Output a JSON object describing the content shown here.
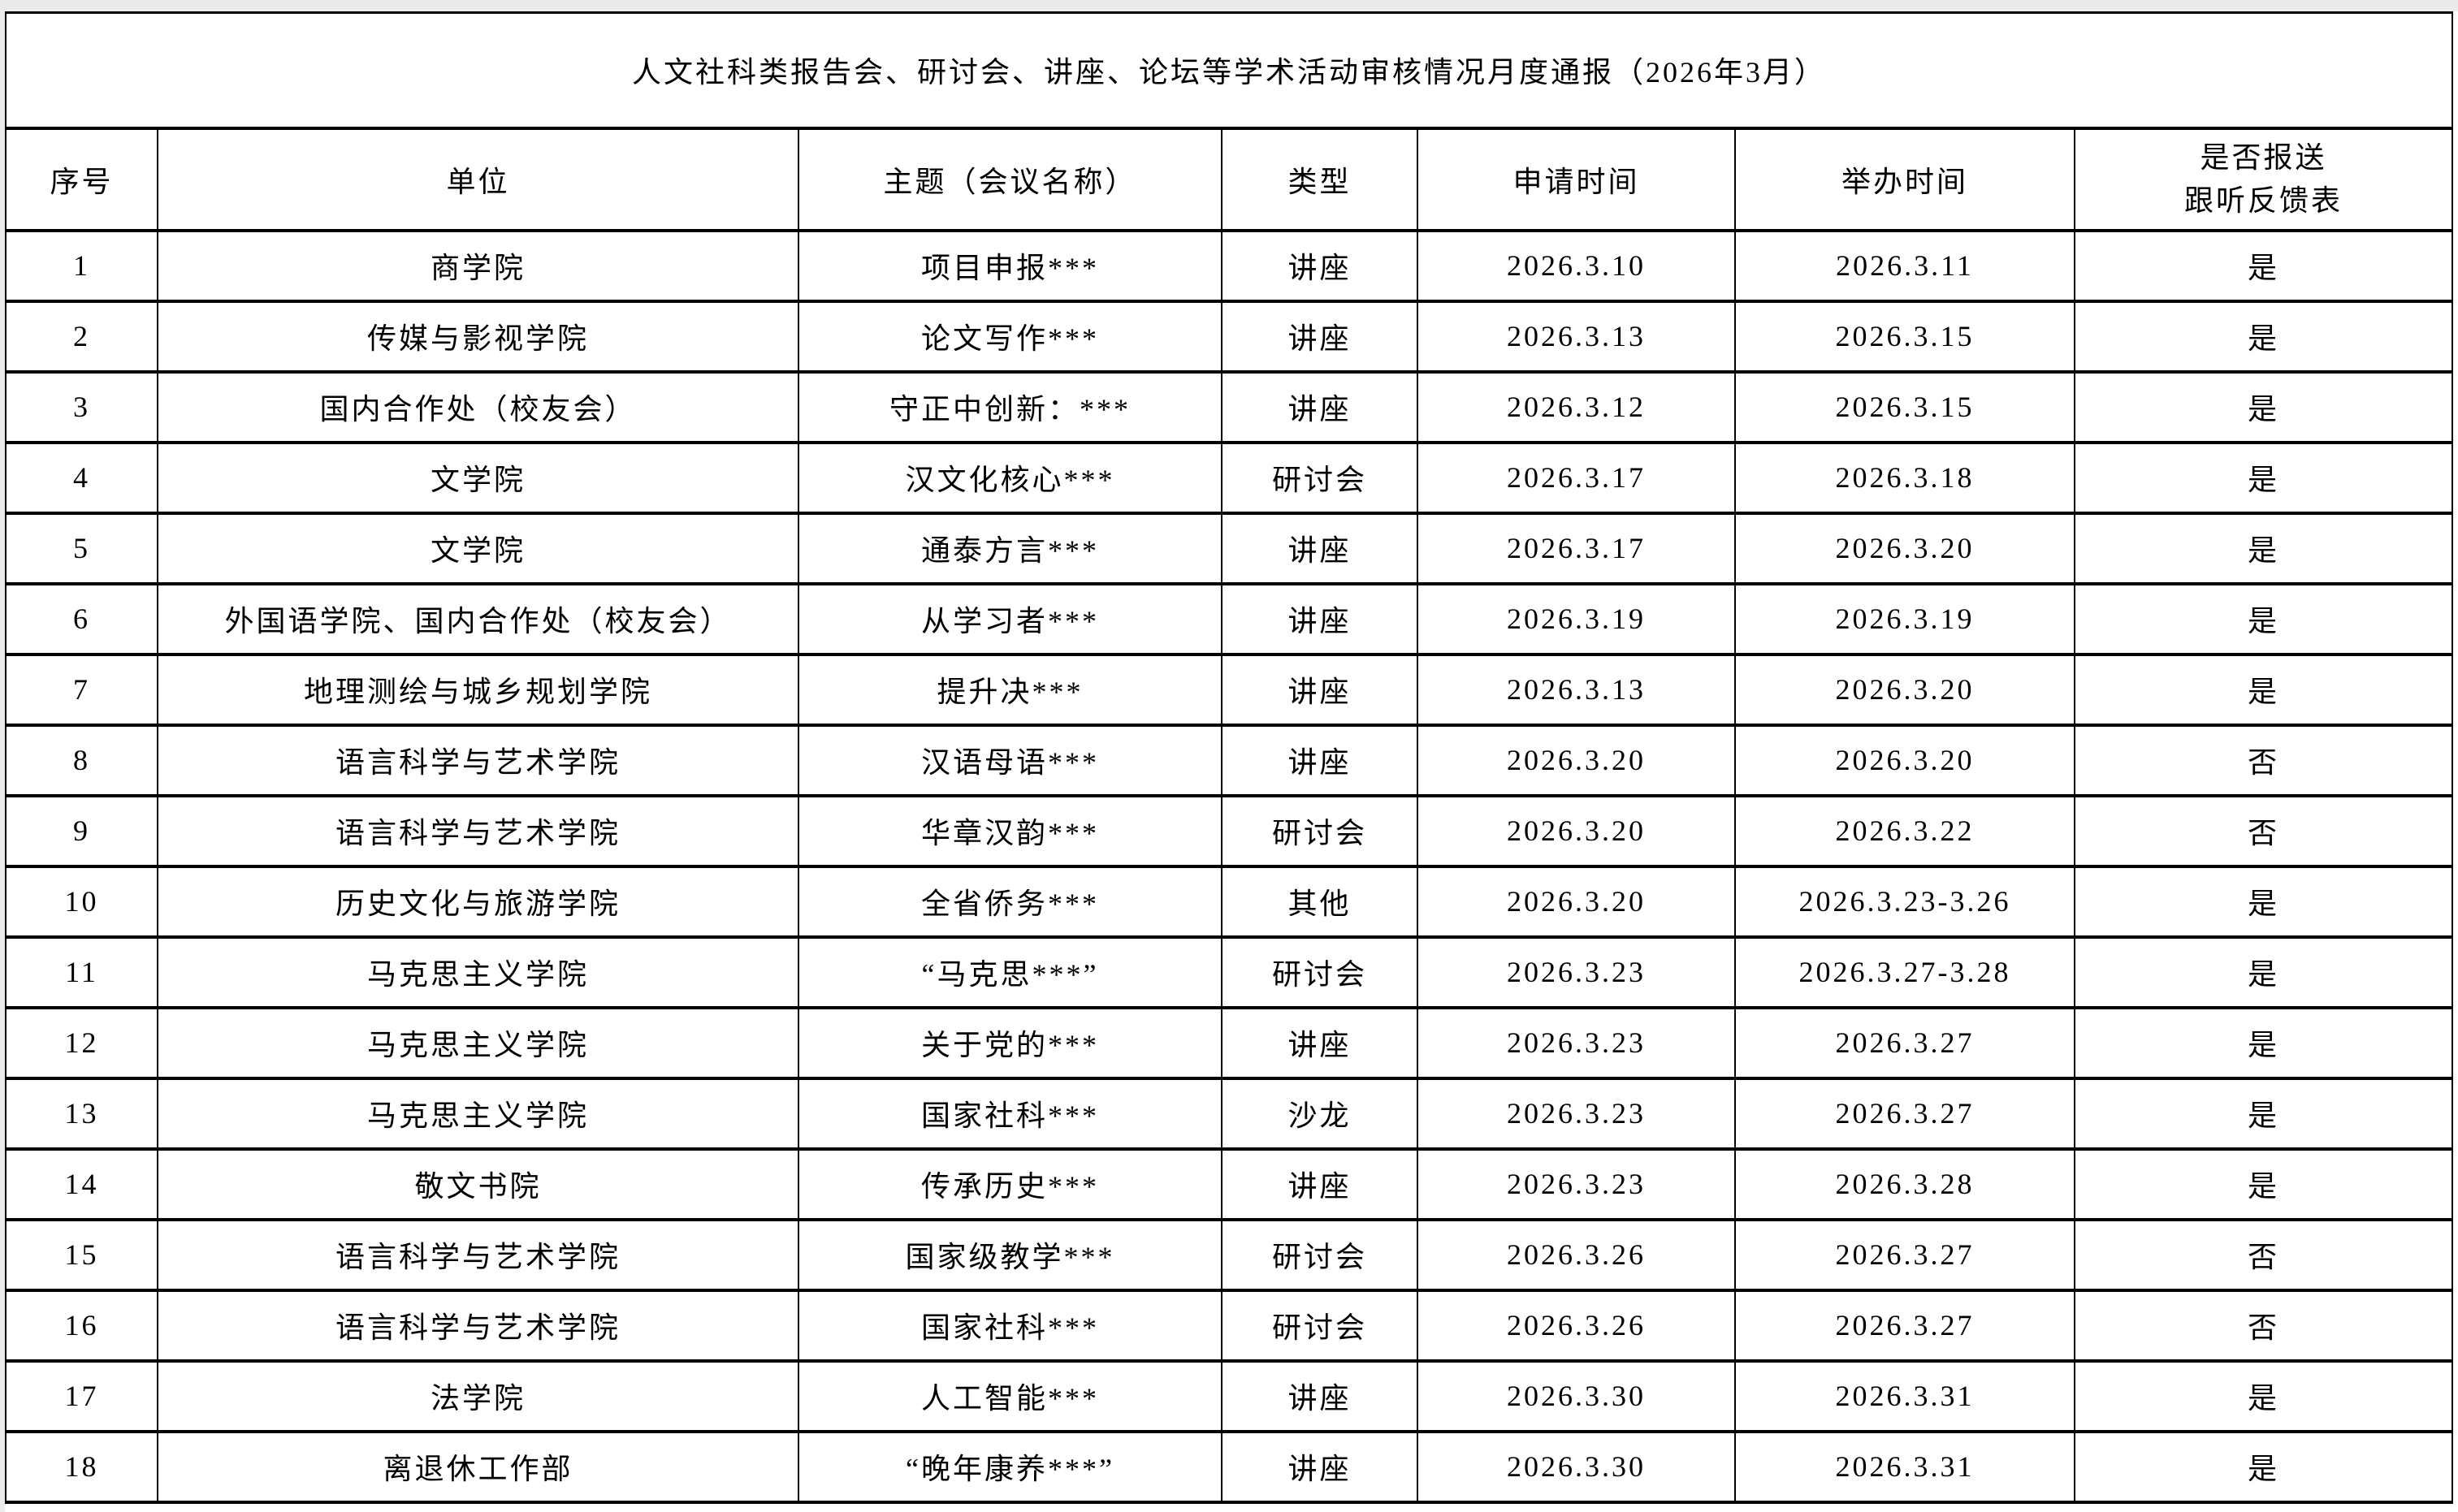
{
  "page": {
    "title": "人文社科类报告会、研讨会、讲座、论坛等学术活动审核情况月度通报（2026年3月）"
  },
  "table": {
    "columns": [
      "序号",
      "单位",
      "主题（会议名称）",
      "类型",
      "申请时间",
      "举办时间",
      "是否报送\n跟听反馈表"
    ],
    "rows": [
      {
        "no": "1",
        "unit": "商学院",
        "topic": "项目申报***",
        "type": "讲座",
        "apply_date": "2026.3.10",
        "hold_date": "2026.3.11",
        "feedback": "是"
      },
      {
        "no": "2",
        "unit": "传媒与影视学院",
        "topic": "论文写作***",
        "type": "讲座",
        "apply_date": "2026.3.13",
        "hold_date": "2026.3.15",
        "feedback": "是"
      },
      {
        "no": "3",
        "unit": "国内合作处（校友会）",
        "topic": "守正中创新：***",
        "type": "讲座",
        "apply_date": "2026.3.12",
        "hold_date": "2026.3.15",
        "feedback": "是"
      },
      {
        "no": "4",
        "unit": "文学院",
        "topic": "汉文化核心***",
        "type": "研讨会",
        "apply_date": "2026.3.17",
        "hold_date": "2026.3.18",
        "feedback": "是"
      },
      {
        "no": "5",
        "unit": "文学院",
        "topic": "通泰方言***",
        "type": "讲座",
        "apply_date": "2026.3.17",
        "hold_date": "2026.3.20",
        "feedback": "是"
      },
      {
        "no": "6",
        "unit": "外国语学院、国内合作处（校友会）",
        "topic": "从学习者***",
        "type": "讲座",
        "apply_date": "2026.3.19",
        "hold_date": "2026.3.19",
        "feedback": "是"
      },
      {
        "no": "7",
        "unit": "地理测绘与城乡规划学院",
        "topic": "提升决***",
        "type": "讲座",
        "apply_date": "2026.3.13",
        "hold_date": "2026.3.20",
        "feedback": "是"
      },
      {
        "no": "8",
        "unit": "语言科学与艺术学院",
        "topic": "汉语母语***",
        "type": "讲座",
        "apply_date": "2026.3.20",
        "hold_date": "2026.3.20",
        "feedback": "否"
      },
      {
        "no": "9",
        "unit": "语言科学与艺术学院",
        "topic": "华章汉韵***",
        "type": "研讨会",
        "apply_date": "2026.3.20",
        "hold_date": "2026.3.22",
        "feedback": "否"
      },
      {
        "no": "10",
        "unit": "历史文化与旅游学院",
        "topic": "全省侨务***",
        "type": "其他",
        "apply_date": "2026.3.20",
        "hold_date": "2026.3.23-3.26",
        "feedback": "是"
      },
      {
        "no": "11",
        "unit": "马克思主义学院",
        "topic": "“马克思***”",
        "type": "研讨会",
        "apply_date": "2026.3.23",
        "hold_date": "2026.3.27-3.28",
        "feedback": "是"
      },
      {
        "no": "12",
        "unit": "马克思主义学院",
        "topic": "关于党的***",
        "type": "讲座",
        "apply_date": "2026.3.23",
        "hold_date": "2026.3.27",
        "feedback": "是"
      },
      {
        "no": "13",
        "unit": "马克思主义学院",
        "topic": "国家社科***",
        "type": "沙龙",
        "apply_date": "2026.3.23",
        "hold_date": "2026.3.27",
        "feedback": "是"
      },
      {
        "no": "14",
        "unit": "敬文书院",
        "topic": "传承历史***",
        "type": "讲座",
        "apply_date": "2026.3.23",
        "hold_date": "2026.3.28",
        "feedback": "是"
      },
      {
        "no": "15",
        "unit": "语言科学与艺术学院",
        "topic": "国家级教学***",
        "type": "研讨会",
        "apply_date": "2026.3.26",
        "hold_date": "2026.3.27",
        "feedback": "否"
      },
      {
        "no": "16",
        "unit": "语言科学与艺术学院",
        "topic": "国家社科***",
        "type": "研讨会",
        "apply_date": "2026.3.26",
        "hold_date": "2026.3.27",
        "feedback": "否"
      },
      {
        "no": "17",
        "unit": "法学院",
        "topic": "人工智能***",
        "type": "讲座",
        "apply_date": "2026.3.30",
        "hold_date": "2026.3.31",
        "feedback": "是"
      },
      {
        "no": "18",
        "unit": "离退休工作部",
        "topic": "“晚年康养***”",
        "type": "讲座",
        "apply_date": "2026.3.30",
        "hold_date": "2026.3.31",
        "feedback": "是"
      }
    ]
  }
}
